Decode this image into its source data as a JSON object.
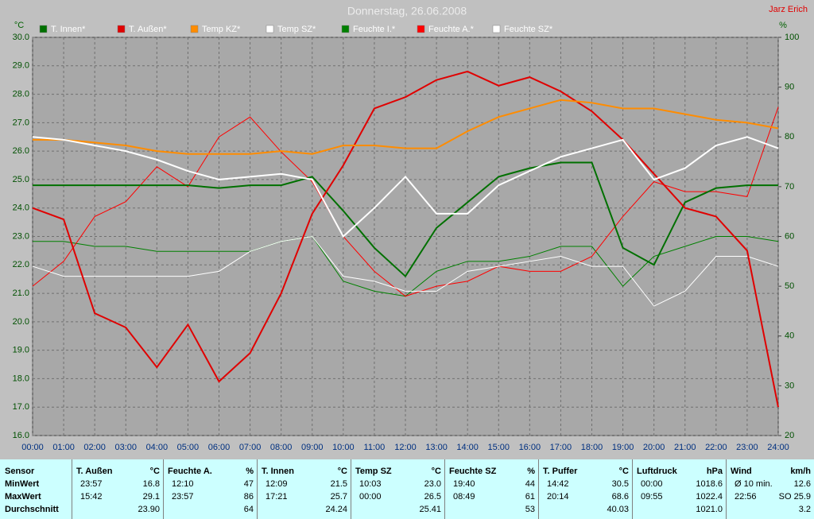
{
  "chart_data": {
    "type": "line",
    "title": "Donnerstag, 26.06.2008",
    "annotation": "Jarz Erich",
    "y_label": "°C",
    "y2_label": "%",
    "x": [
      0,
      1,
      2,
      3,
      4,
      5,
      6,
      7,
      8,
      9,
      10,
      11,
      12,
      13,
      14,
      15,
      16,
      17,
      18,
      19,
      20,
      21,
      22,
      23,
      24
    ],
    "xlim": [
      0,
      24
    ],
    "xticks": [
      {
        "value": 0,
        "label": "00:00"
      },
      {
        "value": 1,
        "label": "01:00"
      },
      {
        "value": 2,
        "label": "02:00"
      },
      {
        "value": 3,
        "label": "03:00"
      },
      {
        "value": 4,
        "label": "04:00"
      },
      {
        "value": 5,
        "label": "05:00"
      },
      {
        "value": 6,
        "label": "06:00"
      },
      {
        "value": 7,
        "label": "07:00"
      },
      {
        "value": 8,
        "label": "08:00"
      },
      {
        "value": 9,
        "label": "09:00"
      },
      {
        "value": 10,
        "label": "10:00"
      },
      {
        "value": 11,
        "label": "11:00"
      },
      {
        "value": 12,
        "label": "12:00"
      },
      {
        "value": 13,
        "label": "13:00"
      },
      {
        "value": 14,
        "label": "14:00"
      },
      {
        "value": 15,
        "label": "15:00"
      },
      {
        "value": 16,
        "label": "16:00"
      },
      {
        "value": 17,
        "label": "17:00"
      },
      {
        "value": 18,
        "label": "18:00"
      },
      {
        "value": 19,
        "label": "19:00"
      },
      {
        "value": 20,
        "label": "20:00"
      },
      {
        "value": 21,
        "label": "21:00"
      },
      {
        "value": 22,
        "label": "22:00"
      },
      {
        "value": 23,
        "label": "23:00"
      },
      {
        "value": 24,
        "label": "24:00"
      }
    ],
    "ylim": [
      16,
      30
    ],
    "yticks": [
      {
        "value": 16,
        "label": "16.0"
      },
      {
        "value": 17,
        "label": "17.0"
      },
      {
        "value": 18,
        "label": "18.0"
      },
      {
        "value": 19,
        "label": "19.0"
      },
      {
        "value": 20,
        "label": "20.0"
      },
      {
        "value": 21,
        "label": "21.0"
      },
      {
        "value": 22,
        "label": "22.0"
      },
      {
        "value": 23,
        "label": "23.0"
      },
      {
        "value": 24,
        "label": "24.0"
      },
      {
        "value": 25,
        "label": "25.0"
      },
      {
        "value": 26,
        "label": "26.0"
      },
      {
        "value": 27,
        "label": "27.0"
      },
      {
        "value": 28,
        "label": "28.0"
      },
      {
        "value": 29,
        "label": "29.0"
      },
      {
        "value": 30,
        "label": "30.0"
      }
    ],
    "y2lim": [
      20,
      100
    ],
    "y2ticks": [
      20,
      30,
      40,
      50,
      60,
      70,
      80,
      90,
      100
    ],
    "grid": true,
    "series": [
      {
        "name": "T. Innen*",
        "color": "#007000",
        "line_width": 2,
        "values": [
          24.8,
          24.8,
          24.8,
          24.8,
          24.8,
          24.8,
          24.7,
          24.8,
          24.8,
          25.1,
          23.9,
          22.6,
          21.6,
          23.3,
          24.2,
          25.1,
          25.4,
          25.6,
          25.6,
          22.6,
          22.0,
          24.2,
          24.7,
          24.8,
          24.8
        ]
      },
      {
        "name": "T. Außen*",
        "color": "#e00000",
        "line_width": 2,
        "values": [
          24.0,
          23.6,
          20.3,
          19.8,
          18.4,
          19.9,
          17.9,
          18.9,
          21.0,
          23.8,
          25.5,
          27.5,
          27.9,
          28.5,
          28.8,
          28.3,
          28.6,
          28.1,
          27.4,
          26.4,
          25.2,
          24.0,
          23.7,
          22.5,
          17.0
        ]
      },
      {
        "name": "Temp KZ*",
        "color": "#ff8c00",
        "line_width": 2,
        "values": [
          26.4,
          26.4,
          26.3,
          26.2,
          26.0,
          25.9,
          25.9,
          25.9,
          26.0,
          25.9,
          26.2,
          26.2,
          26.1,
          26.1,
          26.7,
          27.2,
          27.5,
          27.8,
          27.7,
          27.5,
          27.5,
          27.3,
          27.1,
          27.0,
          26.8
        ]
      },
      {
        "name": "Temp SZ*",
        "color": "#ffffff",
        "line_width": 2,
        "values": [
          26.5,
          26.4,
          26.2,
          26.0,
          25.7,
          25.3,
          25.0,
          25.1,
          25.2,
          25.0,
          23.0,
          24.0,
          25.1,
          23.8,
          23.8,
          24.8,
          25.3,
          25.8,
          26.1,
          26.4,
          25.0,
          25.4,
          26.2,
          26.5,
          26.1
        ]
      },
      {
        "name": "Feuchte I.*",
        "color": "#008000",
        "line_width": 1,
        "axis": "y2",
        "values": [
          59,
          59,
          58,
          58,
          57,
          57,
          57,
          57,
          59,
          60,
          51,
          49,
          48,
          53,
          55,
          55,
          56,
          58,
          58,
          50,
          56,
          58,
          60,
          60,
          59
        ]
      },
      {
        "name": "Feuchte A.*",
        "color": "#ff0000",
        "line_width": 1,
        "axis": "y2",
        "values": [
          50,
          55,
          64,
          67,
          74,
          70,
          80,
          84,
          77,
          71,
          60,
          53,
          48,
          50,
          51,
          54,
          53,
          53,
          56,
          64,
          71,
          69,
          69,
          68,
          86
        ]
      },
      {
        "name": "Feuchte SZ*",
        "color": "#ffffff",
        "line_width": 1,
        "axis": "y2",
        "values": [
          54,
          52,
          52,
          52,
          52,
          52,
          53,
          57,
          59,
          60,
          52,
          51,
          49,
          49,
          53,
          54,
          55,
          56,
          54,
          54,
          46,
          49,
          56,
          56,
          54
        ]
      }
    ]
  },
  "table": {
    "row_header": "Sensor",
    "row_labels": [
      "MinWert",
      "MaxWert",
      "Durchschnitt"
    ],
    "columns": [
      {
        "name": "T. Außen",
        "unit": "°C",
        "cells": [
          [
            "23:57",
            "16.8"
          ],
          [
            "15:42",
            "29.1"
          ],
          [
            null,
            "23.90"
          ]
        ]
      },
      {
        "name": "Feuchte A.",
        "unit": "%",
        "cells": [
          [
            "12:10",
            "47"
          ],
          [
            "23:57",
            "86"
          ],
          [
            null,
            "64"
          ]
        ]
      },
      {
        "name": "T. Innen",
        "unit": "°C",
        "cells": [
          [
            "12:09",
            "21.5"
          ],
          [
            "17:21",
            "25.7"
          ],
          [
            null,
            "24.24"
          ]
        ]
      },
      {
        "name": "Temp SZ",
        "unit": "°C",
        "cells": [
          [
            "10:03",
            "23.0"
          ],
          [
            "00:00",
            "26.5"
          ],
          [
            null,
            "25.41"
          ]
        ]
      },
      {
        "name": "Feuchte SZ",
        "unit": "%",
        "cells": [
          [
            "19:40",
            "44"
          ],
          [
            "08:49",
            "61"
          ],
          [
            null,
            "53"
          ]
        ]
      },
      {
        "name": "T. Puffer",
        "unit": "°C",
        "cells": [
          [
            "14:42",
            "30.5"
          ],
          [
            "20:14",
            "68.6"
          ],
          [
            null,
            "40.03"
          ]
        ]
      },
      {
        "name": "Luftdruck",
        "unit": "hPa",
        "cells": [
          [
            "00:00",
            "1018.6"
          ],
          [
            "09:55",
            "1022.4"
          ],
          [
            null,
            "1021.0"
          ]
        ]
      },
      {
        "name": "Wind",
        "unit": "km/h",
        "cells": [
          [
            "Ø 10 min.",
            "12.6"
          ],
          [
            "22:56",
            "SO 25.9"
          ],
          [
            null,
            "3.2"
          ]
        ]
      }
    ]
  }
}
